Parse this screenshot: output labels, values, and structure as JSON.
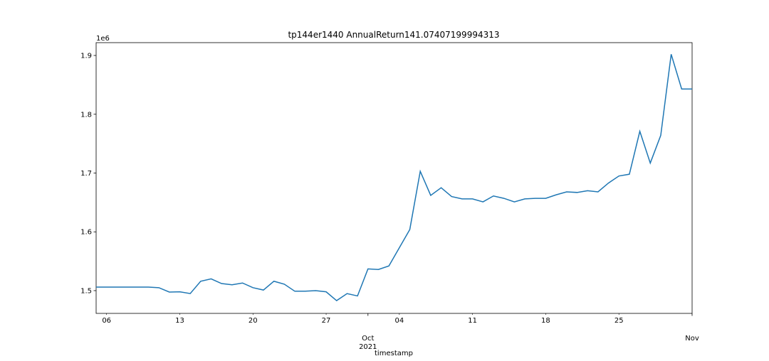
{
  "chart_data": {
    "type": "line",
    "title": "tp144er1440 AnnualReturn141.07407199994313",
    "xlabel": "timestamp",
    "y_offset_label": "1e6",
    "color": "#1f77b4",
    "x": [
      "2021-09-05",
      "2021-09-06",
      "2021-09-07",
      "2021-09-08",
      "2021-09-09",
      "2021-09-10",
      "2021-09-11",
      "2021-09-12",
      "2021-09-13",
      "2021-09-14",
      "2021-09-15",
      "2021-09-16",
      "2021-09-17",
      "2021-09-18",
      "2021-09-19",
      "2021-09-20",
      "2021-09-21",
      "2021-09-22",
      "2021-09-23",
      "2021-09-24",
      "2021-09-25",
      "2021-09-26",
      "2021-09-27",
      "2021-09-28",
      "2021-09-29",
      "2021-09-30",
      "2021-10-01",
      "2021-10-02",
      "2021-10-03",
      "2021-10-04",
      "2021-10-05",
      "2021-10-06",
      "2021-10-07",
      "2021-10-08",
      "2021-10-09",
      "2021-10-10",
      "2021-10-11",
      "2021-10-12",
      "2021-10-13",
      "2021-10-14",
      "2021-10-15",
      "2021-10-16",
      "2021-10-17",
      "2021-10-18",
      "2021-10-19",
      "2021-10-20",
      "2021-10-21",
      "2021-10-22",
      "2021-10-23",
      "2021-10-24",
      "2021-10-25",
      "2021-10-26",
      "2021-10-27",
      "2021-10-28",
      "2021-10-29",
      "2021-10-30",
      "2021-10-31",
      "2021-11-01"
    ],
    "values": [
      1.506,
      1.506,
      1.506,
      1.506,
      1.506,
      1.506,
      1.505,
      1.4976,
      1.498,
      1.495,
      1.516,
      1.52,
      1.512,
      1.51,
      1.513,
      1.505,
      1.501,
      1.516,
      1.511,
      1.499,
      1.499,
      1.5,
      1.498,
      1.483,
      1.495,
      1.491,
      1.537,
      1.536,
      1.542,
      1.573,
      1.604,
      1.703,
      1.662,
      1.675,
      1.66,
      1.656,
      1.656,
      1.651,
      1.661,
      1.657,
      1.651,
      1.656,
      1.657,
      1.657,
      1.663,
      1.668,
      1.667,
      1.67,
      1.668,
      1.683,
      1.695,
      1.698,
      1.771,
      1.717,
      1.764,
      1.902,
      1.843,
      1.843
    ],
    "xlim": [
      "2021-09-05",
      "2021-11-01"
    ],
    "xticks": [
      {
        "value": "2021-09-06",
        "label": "06"
      },
      {
        "value": "2021-09-13",
        "label": "13"
      },
      {
        "value": "2021-09-20",
        "label": "20"
      },
      {
        "value": "2021-09-27",
        "label": "27"
      },
      {
        "value": "2021-10-04",
        "label": "04"
      },
      {
        "value": "2021-10-11",
        "label": "11"
      },
      {
        "value": "2021-10-18",
        "label": "18"
      },
      {
        "value": "2021-10-25",
        "label": "25"
      }
    ],
    "xticks_major": [
      {
        "value": "2021-10-01",
        "label": "Oct\n2021"
      },
      {
        "value": "2021-11-01",
        "label": "Nov"
      }
    ],
    "ylim": [
      1.4613,
      1.9218
    ],
    "yticks": [
      1.5,
      1.6,
      1.7,
      1.8,
      1.9
    ],
    "grid": false
  }
}
